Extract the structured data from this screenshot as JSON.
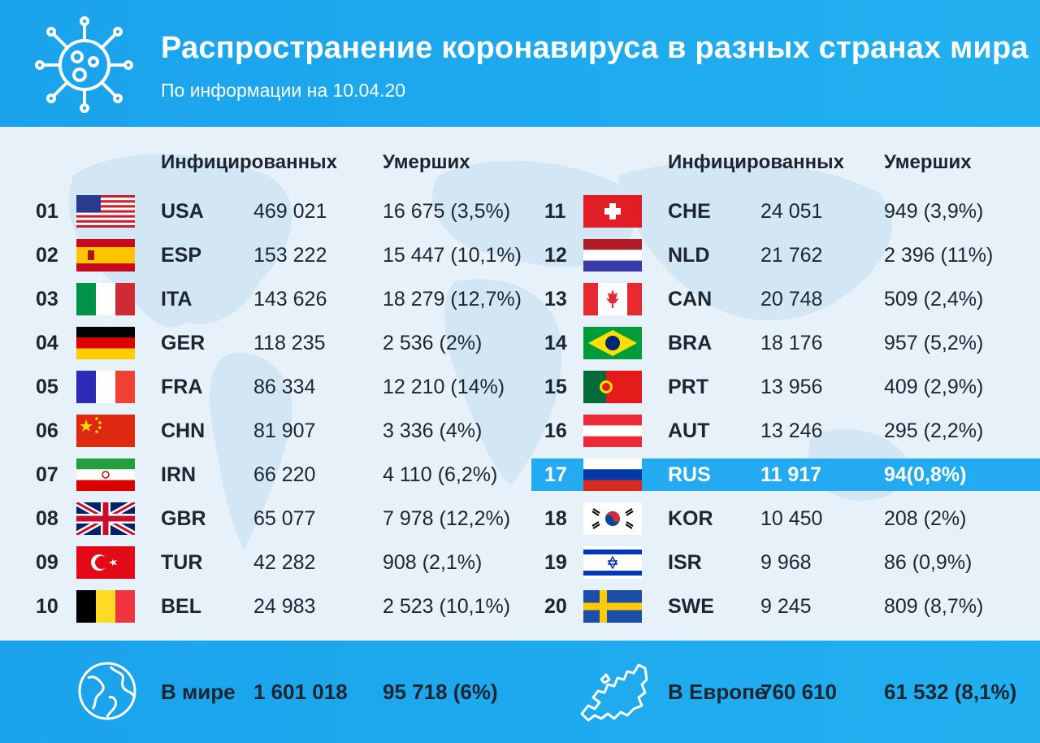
{
  "header": {
    "title": "Распространение коронавируса в разных странах мира",
    "subtitle": "По информации на 10.04.20",
    "icon": "virus-icon"
  },
  "columns": {
    "infected": "Инфицированных",
    "deaths": "Умерших"
  },
  "left_rows": [
    {
      "rank": "01",
      "flag": "usa-flag",
      "code": "USA",
      "infected": "469 021",
      "deaths": "16 675 (3,5%)"
    },
    {
      "rank": "02",
      "flag": "spain-flag",
      "code": "ESP",
      "infected": "153 222",
      "deaths": "15 447 (10,1%)"
    },
    {
      "rank": "03",
      "flag": "italy-flag",
      "code": "ITA",
      "infected": "143 626",
      "deaths": "18 279 (12,7%)"
    },
    {
      "rank": "04",
      "flag": "germany-flag",
      "code": "GER",
      "infected": "118 235",
      "deaths": "2 536 (2%)"
    },
    {
      "rank": "05",
      "flag": "france-flag",
      "code": "FRA",
      "infected": "86 334",
      "deaths": "12 210 (14%)"
    },
    {
      "rank": "06",
      "flag": "china-flag",
      "code": "CHN",
      "infected": "81 907",
      "deaths": "3 336 (4%)"
    },
    {
      "rank": "07",
      "flag": "iran-flag",
      "code": "IRN",
      "infected": "66 220",
      "deaths": "4 110 (6,2%)"
    },
    {
      "rank": "08",
      "flag": "uk-flag",
      "code": "GBR",
      "infected": "65 077",
      "deaths": "7 978 (12,2%)"
    },
    {
      "rank": "09",
      "flag": "turkey-flag",
      "code": "TUR",
      "infected": "42 282",
      "deaths": "908 (2,1%)"
    },
    {
      "rank": "10",
      "flag": "belgium-flag",
      "code": "BEL",
      "infected": "24 983",
      "deaths": "2 523 (10,1%)"
    }
  ],
  "right_rows": [
    {
      "rank": "11",
      "flag": "switzerland-flag",
      "code": "CHE",
      "infected": "24 051",
      "deaths": "949 (3,9%)"
    },
    {
      "rank": "12",
      "flag": "netherlands-flag",
      "code": "NLD",
      "infected": "21 762",
      "deaths": "2 396 (11%)"
    },
    {
      "rank": "13",
      "flag": "canada-flag",
      "code": "CAN",
      "infected": "20 748",
      "deaths": "509 (2,4%)"
    },
    {
      "rank": "14",
      "flag": "brazil-flag",
      "code": "BRA",
      "infected": "18 176",
      "deaths": "957 (5,2%)"
    },
    {
      "rank": "15",
      "flag": "portugal-flag",
      "code": "PRT",
      "infected": "13 956",
      "deaths": "409 (2,9%)"
    },
    {
      "rank": "16",
      "flag": "austria-flag",
      "code": "AUT",
      "infected": "13 246",
      "deaths": "295 (2,2%)"
    },
    {
      "rank": "17",
      "flag": "russia-flag",
      "code": "RUS",
      "infected": "11 917",
      "deaths": "94(0,8%)",
      "highlight": true
    },
    {
      "rank": "18",
      "flag": "korea-flag",
      "code": "KOR",
      "infected": "10 450",
      "deaths": "208 (2%)"
    },
    {
      "rank": "19",
      "flag": "israel-flag",
      "code": "ISR",
      "infected": "9 968",
      "deaths": "86 (0,9%)"
    },
    {
      "rank": "20",
      "flag": "sweden-flag",
      "code": "SWE",
      "infected": "9 245",
      "deaths": "809 (8,7%)"
    }
  ],
  "footer": {
    "world": {
      "label": "В мире",
      "infected": "1 601 018",
      "deaths": "95 718 (6%)",
      "icon": "globe-icon"
    },
    "europe": {
      "label": "В Европе",
      "infected": "760 610",
      "deaths": "61 532 (8,1%)",
      "icon": "europe-map-icon"
    }
  },
  "colors": {
    "accent": "#1fa9ee",
    "highlight": "#24aaf0",
    "text": "#1c2530",
    "background": "#e6f1f9"
  }
}
